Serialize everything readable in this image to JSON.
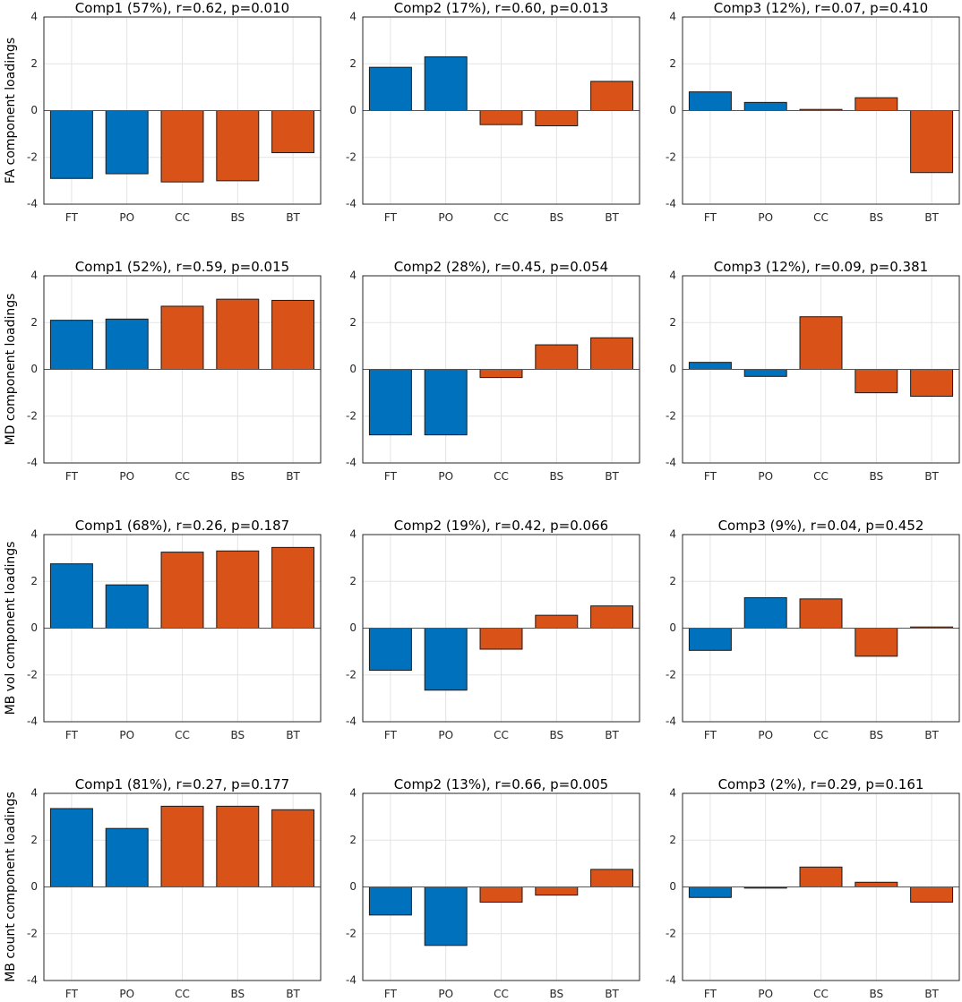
{
  "chart_data": {
    "type": "bar",
    "categories": [
      "FT",
      "PO",
      "CC",
      "BS",
      "BT"
    ],
    "ylim": [
      -4,
      4
    ],
    "yticks": [
      -4,
      -2,
      0,
      2,
      4
    ],
    "colors": {
      "blue": "#0072BD",
      "orange": "#D95319",
      "grid": "#e3e3e3",
      "axis": "#262626"
    },
    "category_colors": [
      "blue",
      "blue",
      "orange",
      "orange",
      "orange"
    ],
    "rows": [
      {
        "ylabel": "FA component loadings",
        "panels": [
          {
            "title": "Comp1 (57%), r=0.62, p=0.010",
            "values": [
              -2.9,
              -2.7,
              -3.05,
              -3.0,
              -1.8
            ]
          },
          {
            "title": "Comp2 (17%), r=0.60, p=0.013",
            "values": [
              1.85,
              2.3,
              -0.6,
              -0.65,
              1.25
            ]
          },
          {
            "title": "Comp3 (12%), r=0.07, p=0.410",
            "values": [
              0.8,
              0.35,
              0.05,
              0.55,
              -2.65
            ]
          }
        ]
      },
      {
        "ylabel": "MD component loadings",
        "panels": [
          {
            "title": "Comp1 (52%), r=0.59, p=0.015",
            "values": [
              2.1,
              2.15,
              2.7,
              3.0,
              2.95
            ]
          },
          {
            "title": "Comp2 (28%), r=0.45, p=0.054",
            "values": [
              -2.8,
              -2.8,
              -0.35,
              1.05,
              1.35
            ]
          },
          {
            "title": "Comp3 (12%), r=0.09, p=0.381",
            "values": [
              0.3,
              -0.3,
              2.25,
              -1.0,
              -1.15
            ]
          }
        ]
      },
      {
        "ylabel": "MB vol component loadings",
        "panels": [
          {
            "title": "Comp1 (68%), r=0.26, p=0.187",
            "values": [
              2.75,
              1.85,
              3.25,
              3.3,
              3.45
            ]
          },
          {
            "title": "Comp2 (19%), r=0.42, p=0.066",
            "values": [
              -1.8,
              -2.65,
              -0.9,
              0.55,
              0.95
            ]
          },
          {
            "title": "Comp3 (9%), r=0.04, p=0.452",
            "values": [
              -0.95,
              1.3,
              1.25,
              -1.2,
              0.05
            ]
          }
        ]
      },
      {
        "ylabel": "MB count component loadings",
        "panels": [
          {
            "title": "Comp1 (81%), r=0.27, p=0.177",
            "values": [
              3.35,
              2.5,
              3.45,
              3.45,
              3.3
            ]
          },
          {
            "title": "Comp2 (13%), r=0.66, p=0.005",
            "values": [
              -1.2,
              -2.5,
              -0.65,
              -0.35,
              0.75
            ]
          },
          {
            "title": "Comp3 (2%), r=0.29, p=0.161",
            "values": [
              -0.45,
              -0.05,
              0.85,
              0.2,
              -0.65
            ]
          }
        ]
      }
    ]
  }
}
